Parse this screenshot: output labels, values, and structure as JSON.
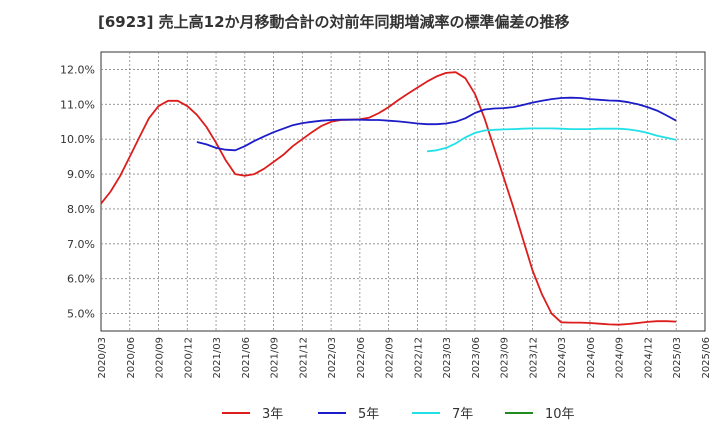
{
  "chart_data": {
    "type": "line",
    "title": "[6923]  売上高12か月移動合計の対前年同期増減率の標準偏差の推移",
    "xlabel": "",
    "ylabel": "",
    "ylim": [
      4.5,
      12.5
    ],
    "y_ticks": [
      "5.0%",
      "6.0%",
      "7.0%",
      "8.0%",
      "9.0%",
      "10.0%",
      "11.0%",
      "12.0%"
    ],
    "y_tick_values": [
      5.0,
      6.0,
      7.0,
      8.0,
      9.0,
      10.0,
      11.0,
      12.0
    ],
    "x_ticks": [
      "2020/03",
      "2020/06",
      "2020/09",
      "2020/12",
      "2021/03",
      "2021/06",
      "2021/09",
      "2021/12",
      "2022/03",
      "2022/06",
      "2022/09",
      "2022/12",
      "2023/03",
      "2023/06",
      "2023/09",
      "2023/12",
      "2024/03",
      "2024/06",
      "2024/09",
      "2024/12",
      "2025/03",
      "2025/06"
    ],
    "grid": true,
    "legend_position": "bottom",
    "series": [
      {
        "name": "3年",
        "color": "#dd1c1c",
        "points": [
          [
            "2020/03",
            8.15
          ],
          [
            "2020/04",
            8.5
          ],
          [
            "2020/05",
            8.95
          ],
          [
            "2020/06",
            9.5
          ],
          [
            "2020/07",
            10.05
          ],
          [
            "2020/08",
            10.6
          ],
          [
            "2020/09",
            10.95
          ],
          [
            "2020/10",
            11.1
          ],
          [
            "2020/11",
            11.1
          ],
          [
            "2020/12",
            10.95
          ],
          [
            "2021/01",
            10.7
          ],
          [
            "2021/02",
            10.35
          ],
          [
            "2021/03",
            9.9
          ],
          [
            "2021/04",
            9.4
          ],
          [
            "2021/05",
            9.0
          ],
          [
            "2021/06",
            8.95
          ],
          [
            "2021/07",
            9.0
          ],
          [
            "2021/08",
            9.15
          ],
          [
            "2021/09",
            9.35
          ],
          [
            "2021/10",
            9.55
          ],
          [
            "2021/11",
            9.8
          ],
          [
            "2021/12",
            10.0
          ],
          [
            "2022/01",
            10.2
          ],
          [
            "2022/02",
            10.38
          ],
          [
            "2022/03",
            10.5
          ],
          [
            "2022/04",
            10.55
          ],
          [
            "2022/05",
            10.56
          ],
          [
            "2022/06",
            10.57
          ],
          [
            "2022/07",
            10.62
          ],
          [
            "2022/08",
            10.75
          ],
          [
            "2022/09",
            10.92
          ],
          [
            "2022/10",
            11.12
          ],
          [
            "2022/11",
            11.3
          ],
          [
            "2022/12",
            11.48
          ],
          [
            "2023/01",
            11.65
          ],
          [
            "2023/02",
            11.8
          ],
          [
            "2023/03",
            11.9
          ],
          [
            "2023/04",
            11.92
          ],
          [
            "2023/05",
            11.75
          ],
          [
            "2023/06",
            11.3
          ],
          [
            "2023/07",
            10.6
          ],
          [
            "2023/08",
            9.75
          ],
          [
            "2023/09",
            8.9
          ],
          [
            "2023/10",
            8.05
          ],
          [
            "2023/11",
            7.15
          ],
          [
            "2023/12",
            6.25
          ],
          [
            "2024/01",
            5.55
          ],
          [
            "2024/02",
            5.0
          ],
          [
            "2024/03",
            4.75
          ],
          [
            "2024/04",
            4.74
          ],
          [
            "2024/05",
            4.74
          ],
          [
            "2024/06",
            4.73
          ],
          [
            "2024/07",
            4.71
          ],
          [
            "2024/08",
            4.69
          ],
          [
            "2024/09",
            4.68
          ],
          [
            "2024/10",
            4.7
          ],
          [
            "2024/11",
            4.73
          ],
          [
            "2024/12",
            4.76
          ],
          [
            "2025/01",
            4.78
          ],
          [
            "2025/02",
            4.78
          ],
          [
            "2025/03",
            4.77
          ]
        ]
      },
      {
        "name": "5年",
        "color": "#1c1cc8",
        "points": [
          [
            "2021/01",
            9.92
          ],
          [
            "2021/02",
            9.85
          ],
          [
            "2021/03",
            9.75
          ],
          [
            "2021/04",
            9.7
          ],
          [
            "2021/05",
            9.68
          ],
          [
            "2021/06",
            9.8
          ],
          [
            "2021/07",
            9.95
          ],
          [
            "2021/08",
            10.08
          ],
          [
            "2021/09",
            10.2
          ],
          [
            "2021/10",
            10.3
          ],
          [
            "2021/11",
            10.4
          ],
          [
            "2021/12",
            10.46
          ],
          [
            "2022/01",
            10.5
          ],
          [
            "2022/02",
            10.53
          ],
          [
            "2022/03",
            10.55
          ],
          [
            "2022/04",
            10.56
          ],
          [
            "2022/05",
            10.56
          ],
          [
            "2022/06",
            10.56
          ],
          [
            "2022/07",
            10.55
          ],
          [
            "2022/08",
            10.55
          ],
          [
            "2022/09",
            10.53
          ],
          [
            "2022/10",
            10.51
          ],
          [
            "2022/11",
            10.48
          ],
          [
            "2022/12",
            10.45
          ],
          [
            "2023/01",
            10.43
          ],
          [
            "2023/02",
            10.43
          ],
          [
            "2023/03",
            10.45
          ],
          [
            "2023/04",
            10.5
          ],
          [
            "2023/05",
            10.6
          ],
          [
            "2023/06",
            10.75
          ],
          [
            "2023/07",
            10.85
          ],
          [
            "2023/08",
            10.88
          ],
          [
            "2023/09",
            10.89
          ],
          [
            "2023/10",
            10.92
          ],
          [
            "2023/11",
            10.98
          ],
          [
            "2023/12",
            11.05
          ],
          [
            "2024/01",
            11.1
          ],
          [
            "2024/02",
            11.15
          ],
          [
            "2024/03",
            11.18
          ],
          [
            "2024/04",
            11.19
          ],
          [
            "2024/05",
            11.18
          ],
          [
            "2024/06",
            11.15
          ],
          [
            "2024/07",
            11.13
          ],
          [
            "2024/08",
            11.11
          ],
          [
            "2024/09",
            11.1
          ],
          [
            "2024/10",
            11.06
          ],
          [
            "2024/11",
            11.0
          ],
          [
            "2024/12",
            10.92
          ],
          [
            "2025/01",
            10.82
          ],
          [
            "2025/02",
            10.68
          ],
          [
            "2025/03",
            10.53
          ]
        ]
      },
      {
        "name": "7年",
        "color": "#22e0e8",
        "points": [
          [
            "2023/01",
            9.65
          ],
          [
            "2023/02",
            9.68
          ],
          [
            "2023/03",
            9.75
          ],
          [
            "2023/04",
            9.88
          ],
          [
            "2023/05",
            10.05
          ],
          [
            "2023/06",
            10.18
          ],
          [
            "2023/07",
            10.25
          ],
          [
            "2023/08",
            10.27
          ],
          [
            "2023/09",
            10.28
          ],
          [
            "2023/10",
            10.29
          ],
          [
            "2023/11",
            10.3
          ],
          [
            "2023/12",
            10.31
          ],
          [
            "2024/01",
            10.31
          ],
          [
            "2024/02",
            10.31
          ],
          [
            "2024/03",
            10.3
          ],
          [
            "2024/04",
            10.29
          ],
          [
            "2024/05",
            10.29
          ],
          [
            "2024/06",
            10.29
          ],
          [
            "2024/07",
            10.3
          ],
          [
            "2024/08",
            10.3
          ],
          [
            "2024/09",
            10.3
          ],
          [
            "2024/10",
            10.28
          ],
          [
            "2024/11",
            10.24
          ],
          [
            "2024/12",
            10.18
          ],
          [
            "2025/01",
            10.1
          ],
          [
            "2025/02",
            10.04
          ],
          [
            "2025/03",
            9.98
          ]
        ]
      },
      {
        "name": "10年",
        "color": "#1e8c1e",
        "points": []
      }
    ]
  }
}
